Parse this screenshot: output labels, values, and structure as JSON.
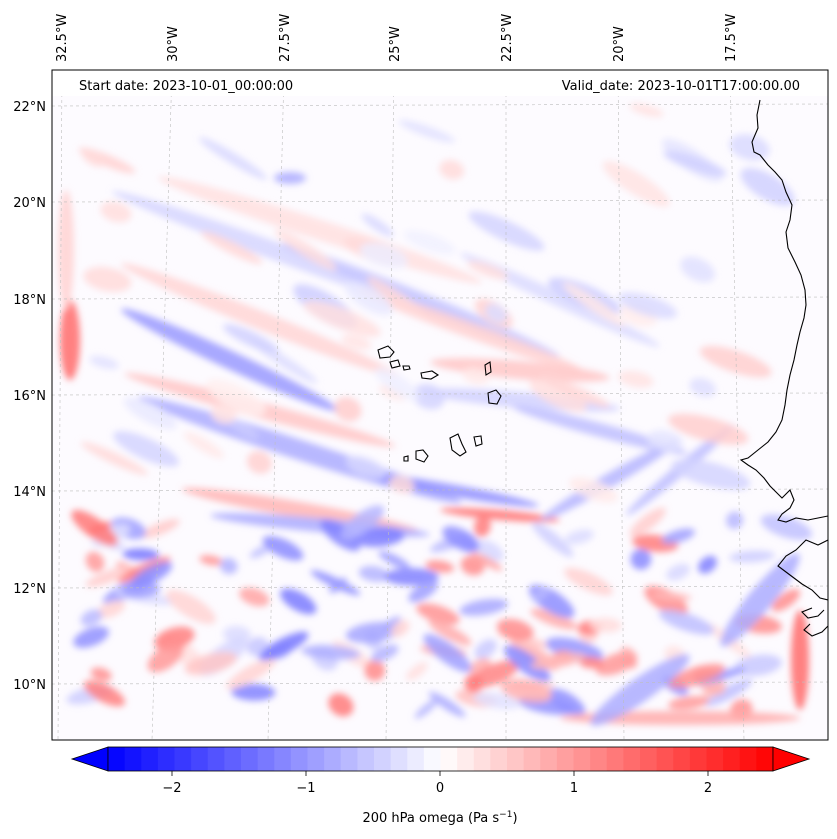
{
  "map": {
    "start_label": "Start date: 2023-10-01_00:00:00",
    "valid_label": "Valid_date: 2023-10-01T17:00:00.00",
    "lon_labels": [
      "32.5°W",
      "30°W",
      "27.5°W",
      "25°W",
      "22.5°W",
      "20°W",
      "17.5°W"
    ],
    "lat_labels": [
      "22°N",
      "20°N",
      "18°N",
      "16°N",
      "14°N",
      "12°N",
      "10°N"
    ],
    "colorbar": {
      "label": "200 hPa omega (Pa s",
      "label_sup": "−1",
      "label_end": ")",
      "ticks": [
        "−2",
        "−1",
        "0",
        "1",
        "2"
      ],
      "range": [
        -2.75,
        2.75
      ],
      "colors": {
        "negative": "#0000ff",
        "zero": "#ffffff",
        "positive": "#ff0000"
      }
    }
  }
}
